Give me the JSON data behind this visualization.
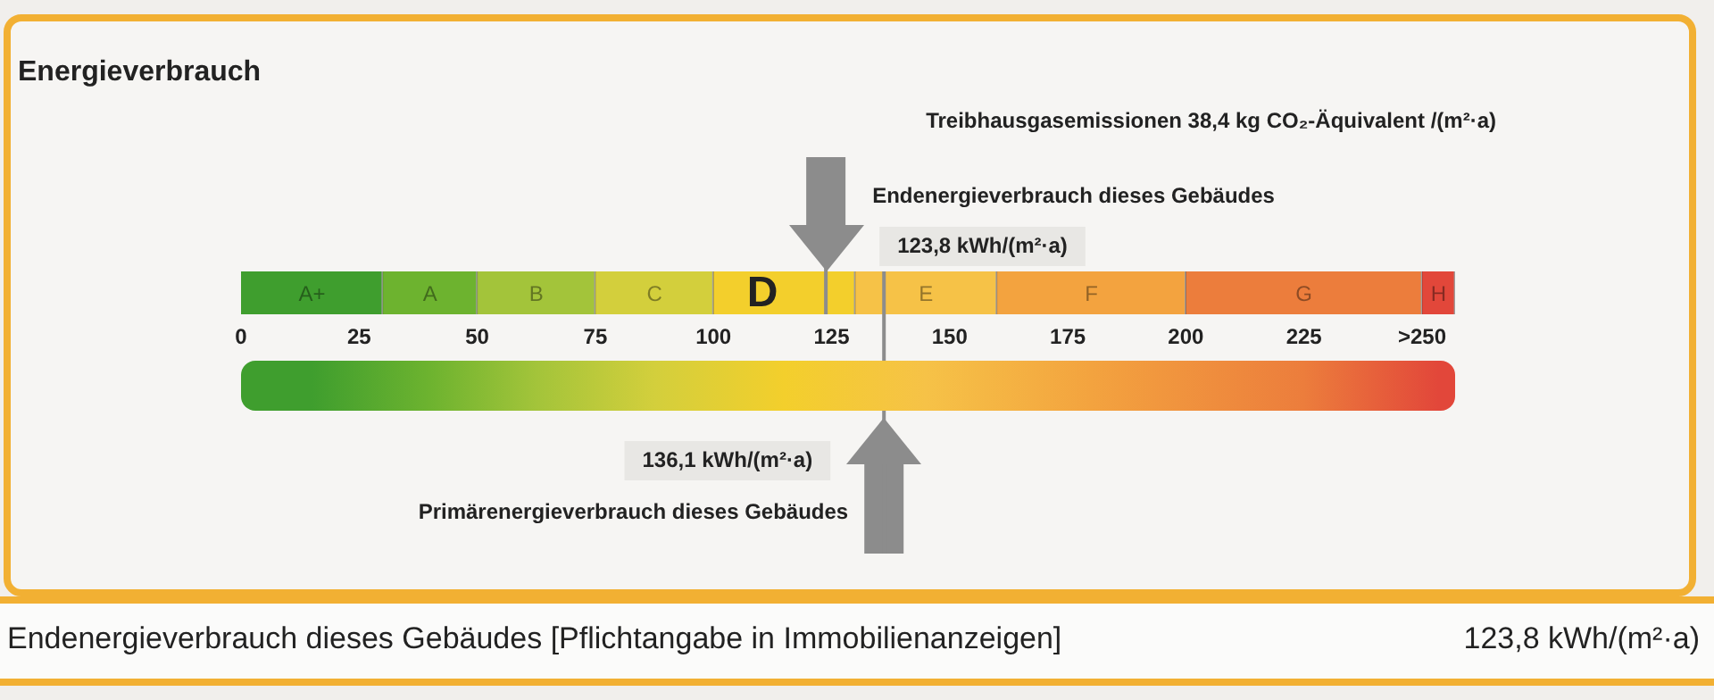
{
  "chart_data": {
    "type": "bar",
    "orientation": "horizontal",
    "stacked": true,
    "title": "Energieverbrauch",
    "categories": [
      null
    ],
    "xlim": [
      0,
      257
    ],
    "xticks": [
      0,
      25,
      50,
      75,
      100,
      125,
      150,
      175,
      200,
      225,
      {
        "value": 250,
        "label": ">250"
      }
    ],
    "series": [
      {
        "name": "A+",
        "color": "#3f9e2e",
        "values": [
          30
        ]
      },
      {
        "name": "A",
        "color": "#6db32f",
        "values": [
          20
        ]
      },
      {
        "name": "B",
        "color": "#a3c43a",
        "values": [
          25
        ]
      },
      {
        "name": "C",
        "color": "#d3cf3c",
        "values": [
          25
        ]
      },
      {
        "name": "D",
        "color": "#f3cf2c",
        "values": [
          30
        ]
      },
      {
        "name": "E",
        "color": "#f6c247",
        "values": [
          30
        ]
      },
      {
        "name": "F",
        "color": "#f3a33f",
        "values": [
          40
        ]
      },
      {
        "name": "G",
        "color": "#ec7d3c",
        "values": [
          50
        ]
      },
      {
        "name": "H",
        "color": "#e2473a",
        "values": [
          7
        ]
      }
    ],
    "ref_lines": [
      {
        "axis": "x",
        "value": 123.8,
        "label": "Endenergieverbrauch dieses Gebäudes",
        "color": "#8c8c8c"
      },
      {
        "axis": "x",
        "value": 136.1,
        "label": "Primärenergieverbrauch dieses Gebäudes",
        "color": "#8c8c8c"
      }
    ],
    "annotations": [
      "Treibhausgasemissionen 38,4 kg CO₂-Äquivalent /(m²·a)",
      "123,8 kWh/(m²·a)",
      "136,1 kWh/(m²·a)",
      "Endenergieverbrauch dieses Gebäudes [Pflichtangabe in Immobilienanzeigen]",
      "123,8 kWh/(m²·a)"
    ]
  }
}
